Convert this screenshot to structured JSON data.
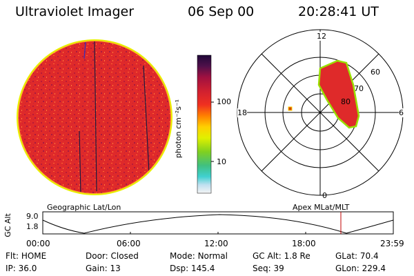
{
  "header": {
    "instrument": "Ultraviolet Imager",
    "date": "06 Sep 00",
    "time": "20:28:41 UT"
  },
  "colorbar": {
    "unit_label": "photon cm⁻²s⁻¹",
    "ticks": [
      "100",
      "10"
    ]
  },
  "polar_plot": {
    "mlt_labels": [
      "12",
      "6",
      "0",
      "18"
    ],
    "mlat_labels": [
      "60",
      "70",
      "80"
    ]
  },
  "timeline": {
    "left_label": "Geographic Lat/Lon",
    "right_label": "Apex MLat/MLT",
    "axis_label": "GC Alt",
    "y_ticks": [
      "9.0",
      "1.8"
    ],
    "x_ticks": [
      "00:00",
      "06:00",
      "12:00",
      "18:00",
      "23:59"
    ]
  },
  "info": {
    "row1": [
      {
        "key": "Flt:",
        "value": "HOME"
      },
      {
        "key": "Door:",
        "value": "Closed"
      },
      {
        "key": "Mode:",
        "value": "Normal"
      },
      {
        "key": "GC Alt:",
        "value": "1.8 Re"
      },
      {
        "key": "GLat:",
        "value": "70.4"
      }
    ],
    "row2": [
      {
        "key": "IP:",
        "value": "36.0"
      },
      {
        "key": "Gain:",
        "value": "13"
      },
      {
        "key": "Dsp:",
        "value": "145.4"
      },
      {
        "key": "Seq:",
        "value": "39"
      },
      {
        "key": "GLon:",
        "value": "229.4"
      }
    ]
  },
  "colors": {
    "disk_fill": "#e02828",
    "disk_edge": "#e6f000",
    "oval_fill": "#e02828",
    "oval_edge": "#9ae000",
    "marker": "#d04800",
    "time_marker": "#c00000"
  }
}
